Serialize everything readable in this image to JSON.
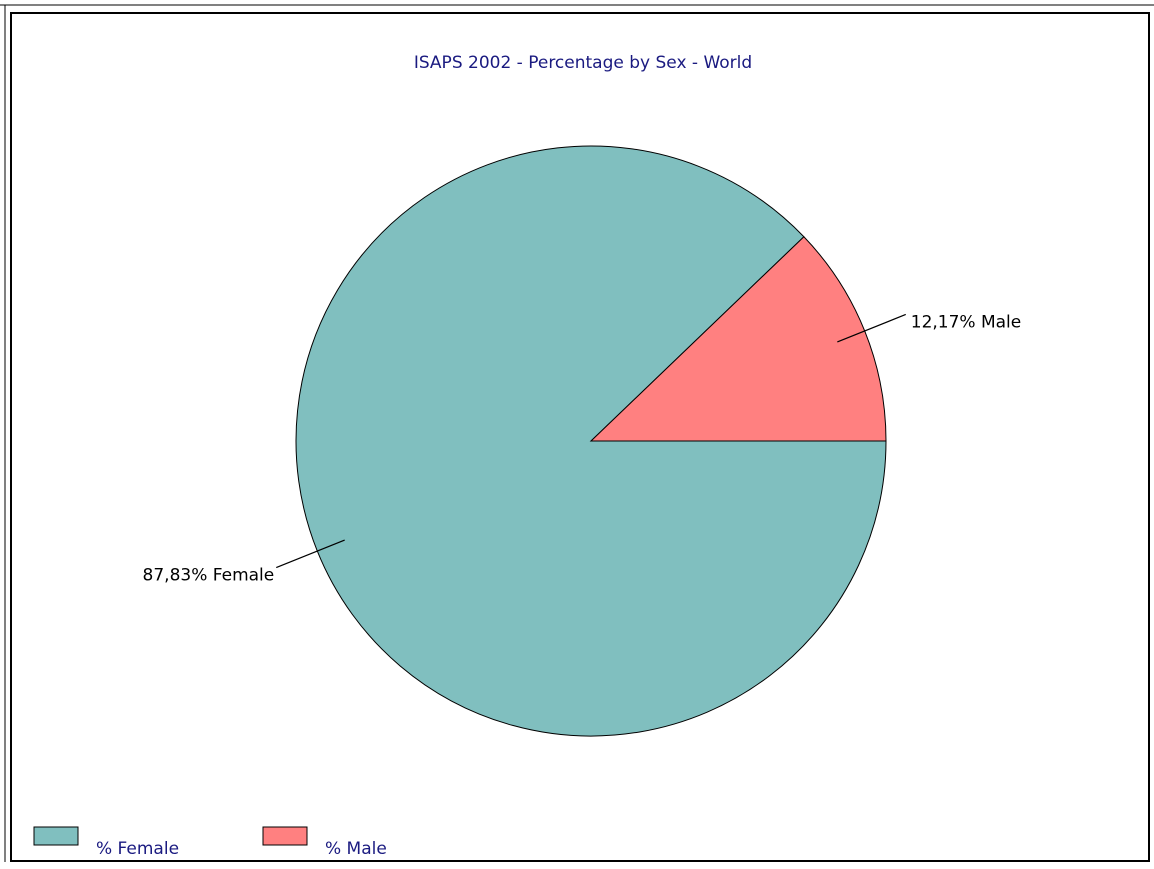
{
  "chart_data": {
    "type": "pie",
    "title": "ISAPS 2002 - Percentage by Sex - World",
    "categories": [
      "% Female",
      "% Male"
    ],
    "values": [
      87.83,
      12.17
    ],
    "value_labels": [
      "87,83% Female",
      "12,17% Male"
    ],
    "colors": [
      "#80bfbf",
      "#ff8080"
    ],
    "legend": "bottom-left"
  }
}
